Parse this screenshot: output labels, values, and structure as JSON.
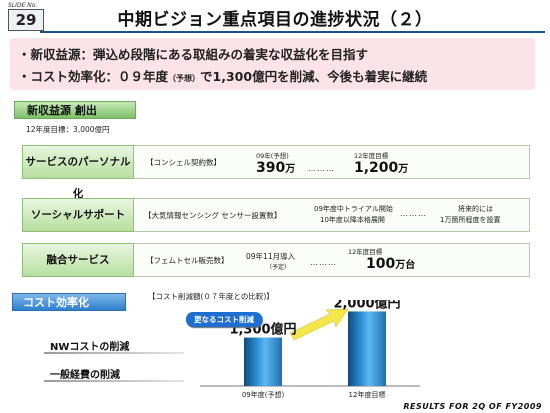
{
  "slide": {
    "no_label": "SLIDE No.",
    "number": "29"
  },
  "title": "中期ビジョン重点項目の進捗状況（２）",
  "bullets": [
    {
      "label": "・新収益源",
      "text": "：弾込め段階にある取組みの着実な収益化を目指す"
    },
    {
      "label": "・コスト効率化",
      "text_pre": "：０９年度",
      "text_note": "（予想）",
      "text_post": "で1,300億円を削減、今後も着実に継続"
    }
  ],
  "new_revenue": {
    "banner": "新収益源 創出",
    "target_note": "12年度目標：3,000億円",
    "rows": [
      {
        "label": "サービスのパーソナル化",
        "metric": "【コンシェル契約数】",
        "fy09_label": "09年(予想)",
        "fy09_value": "390",
        "fy09_unit": "万",
        "target_label": "12年度目標",
        "target_value": "1,200",
        "target_unit": "万"
      },
      {
        "label": "ソーシャルサポート",
        "metric": "【大気情報センシング センサー設置数】",
        "plan_line1": "09年度中トライアル開始",
        "plan_line2": "10年度以降本格展開",
        "future_line1": "将来的には",
        "future_line2": "1万箇所程度を設置"
      },
      {
        "label": "融合サービス",
        "metric": "【フェムトセル販売数】",
        "fy09_label": "09年11月導入",
        "fy09_note": "（予定）",
        "target_label": "12年度目標",
        "target_value": "100",
        "target_unit": "万台"
      }
    ]
  },
  "cost": {
    "banner": "コスト効率化",
    "items": [
      "NWコストの削減",
      "一般経費の削減"
    ],
    "chart_caption": "【コスト削減額(０７年度との比較)】",
    "callout": "更なるコスト削減"
  },
  "chart_data": {
    "type": "bar",
    "categories": [
      "09年度(予想)",
      "12年度目標"
    ],
    "values": [
      1300,
      2000
    ],
    "value_labels": [
      "1,300億円",
      "2,000億円"
    ],
    "title": "【コスト削減額(０７年度との比較)】",
    "xlabel": "",
    "ylabel": "",
    "ylim": [
      0,
      2200
    ],
    "grid": false,
    "colors": [
      "#1f6fb0",
      "#1f6fb0"
    ]
  },
  "footer": "RESULTS FOR 2Q OF FY2009",
  "colors": {
    "title_rule": "#1d4f91",
    "bullet_bg": "#fbe3e9",
    "green_banner": "#7fc06b",
    "blue_banner": "#2f7fcc",
    "arrow": "#f2e64a"
  }
}
